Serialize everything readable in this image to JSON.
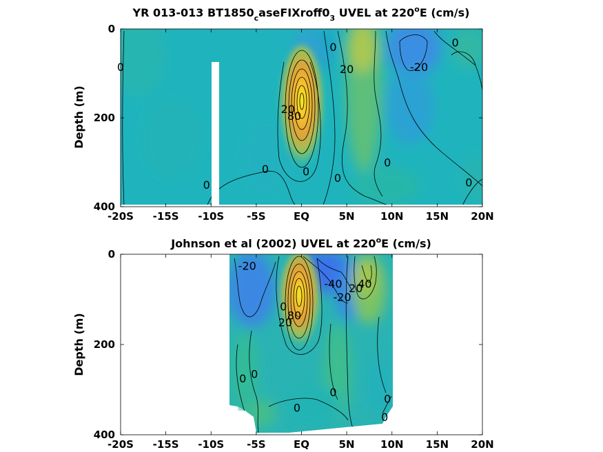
{
  "chart_data": [
    {
      "type": "heatmap",
      "title_main": "YR 013-013 BT1850",
      "title_sub1": "c",
      "title_mid": "aseFIXroff0",
      "title_sub2": "3",
      "title_tail1": " UVEL at 220",
      "title_sup": "o",
      "title_tail2": "E (cm/s)",
      "ylabel": "Depth (m)",
      "x_ticks": [
        "-20S",
        "-15S",
        "-10S",
        "-5S",
        "EQ",
        "5N",
        "10N",
        "15N",
        "20N"
      ],
      "x_tick_values": [
        -20,
        -15,
        -10,
        -5,
        0,
        5,
        10,
        15,
        20
      ],
      "y_ticks": [
        "0",
        "200",
        "400"
      ],
      "y_tick_values": [
        0,
        200,
        400
      ],
      "xlim": [
        -20,
        20
      ],
      "ylim": [
        400,
        0
      ],
      "colors": {
        "background": "#1fb4bd",
        "core_max": "#f7f21a",
        "core_mid": "#eb9a33",
        "green_band": "#7dc56a",
        "blue_westward": "#3e8ee4"
      },
      "features": [
        {
          "name": "Equatorial Undercurrent",
          "lat": 0,
          "depth": 150,
          "value": 100
        },
        {
          "name": "NECC",
          "lat": 7,
          "depth": 60,
          "value": 40
        },
        {
          "name": "SEC north",
          "lat": 12,
          "depth": 50,
          "value": -30
        }
      ],
      "contour_labels": [
        {
          "text": "0",
          "lat": -20,
          "depth": 85
        },
        {
          "text": "0",
          "lat": -10.5,
          "depth": 350
        },
        {
          "text": "0",
          "lat": -4,
          "depth": 315
        },
        {
          "text": "0",
          "lat": 0.5,
          "depth": 320
        },
        {
          "text": "0",
          "lat": 3.5,
          "depth": 40
        },
        {
          "text": "0",
          "lat": 4,
          "depth": 335
        },
        {
          "text": "0",
          "lat": 9.5,
          "depth": 300
        },
        {
          "text": "0",
          "lat": 17,
          "depth": 30
        },
        {
          "text": "0",
          "lat": 18.5,
          "depth": 345
        },
        {
          "text": "20",
          "lat": 5,
          "depth": 90
        },
        {
          "text": "-20",
          "lat": 13,
          "depth": 85
        },
        {
          "text": "20",
          "lat": -1.5,
          "depth": 180
        },
        {
          "text": "80",
          "lat": -0.8,
          "depth": 195
        }
      ]
    },
    {
      "type": "heatmap",
      "title_main": "Johnson et al (2002) UVEL at 220",
      "title_sup": "o",
      "title_tail2": "E (cm/s)",
      "ylabel": "Depth (m)",
      "x_ticks": [
        "-20S",
        "-15S",
        "-10S",
        "-5S",
        "EQ",
        "5N",
        "10N",
        "15N",
        "20N"
      ],
      "x_tick_values": [
        -20,
        -15,
        -10,
        -5,
        0,
        5,
        10,
        15,
        20
      ],
      "y_ticks": [
        "0",
        "200",
        "400"
      ],
      "y_tick_values": [
        0,
        200,
        400
      ],
      "xlim": [
        -20,
        20
      ],
      "ylim": [
        400,
        0
      ],
      "data_extent_lat": [
        -8,
        10
      ],
      "features": [
        {
          "name": "Equatorial Undercurrent",
          "lat": 0,
          "depth": 110,
          "value": 110
        },
        {
          "name": "SEC",
          "lat": 3,
          "depth": 20,
          "value": -50
        },
        {
          "name": "NECC",
          "lat": 7.5,
          "depth": 50,
          "value": 40
        }
      ],
      "contour_labels": [
        {
          "text": "-20",
          "lat": -6,
          "depth": 25
        },
        {
          "text": "-40",
          "lat": 3.5,
          "depth": 65
        },
        {
          "text": "-20",
          "lat": 4.5,
          "depth": 95
        },
        {
          "text": "20",
          "lat": 6,
          "depth": 75
        },
        {
          "text": "40",
          "lat": 7,
          "depth": 65
        },
        {
          "text": "0",
          "lat": -2,
          "depth": 115
        },
        {
          "text": "20",
          "lat": -1.8,
          "depth": 150
        },
        {
          "text": "80",
          "lat": -0.8,
          "depth": 135
        },
        {
          "text": "0",
          "lat": -6.5,
          "depth": 275
        },
        {
          "text": "0",
          "lat": -5.2,
          "depth": 265
        },
        {
          "text": "0",
          "lat": 3.5,
          "depth": 305
        },
        {
          "text": "0",
          "lat": -0.5,
          "depth": 340
        },
        {
          "text": "0",
          "lat": 9.5,
          "depth": 320
        },
        {
          "text": "0",
          "lat": 9.2,
          "depth": 360
        }
      ]
    }
  ]
}
